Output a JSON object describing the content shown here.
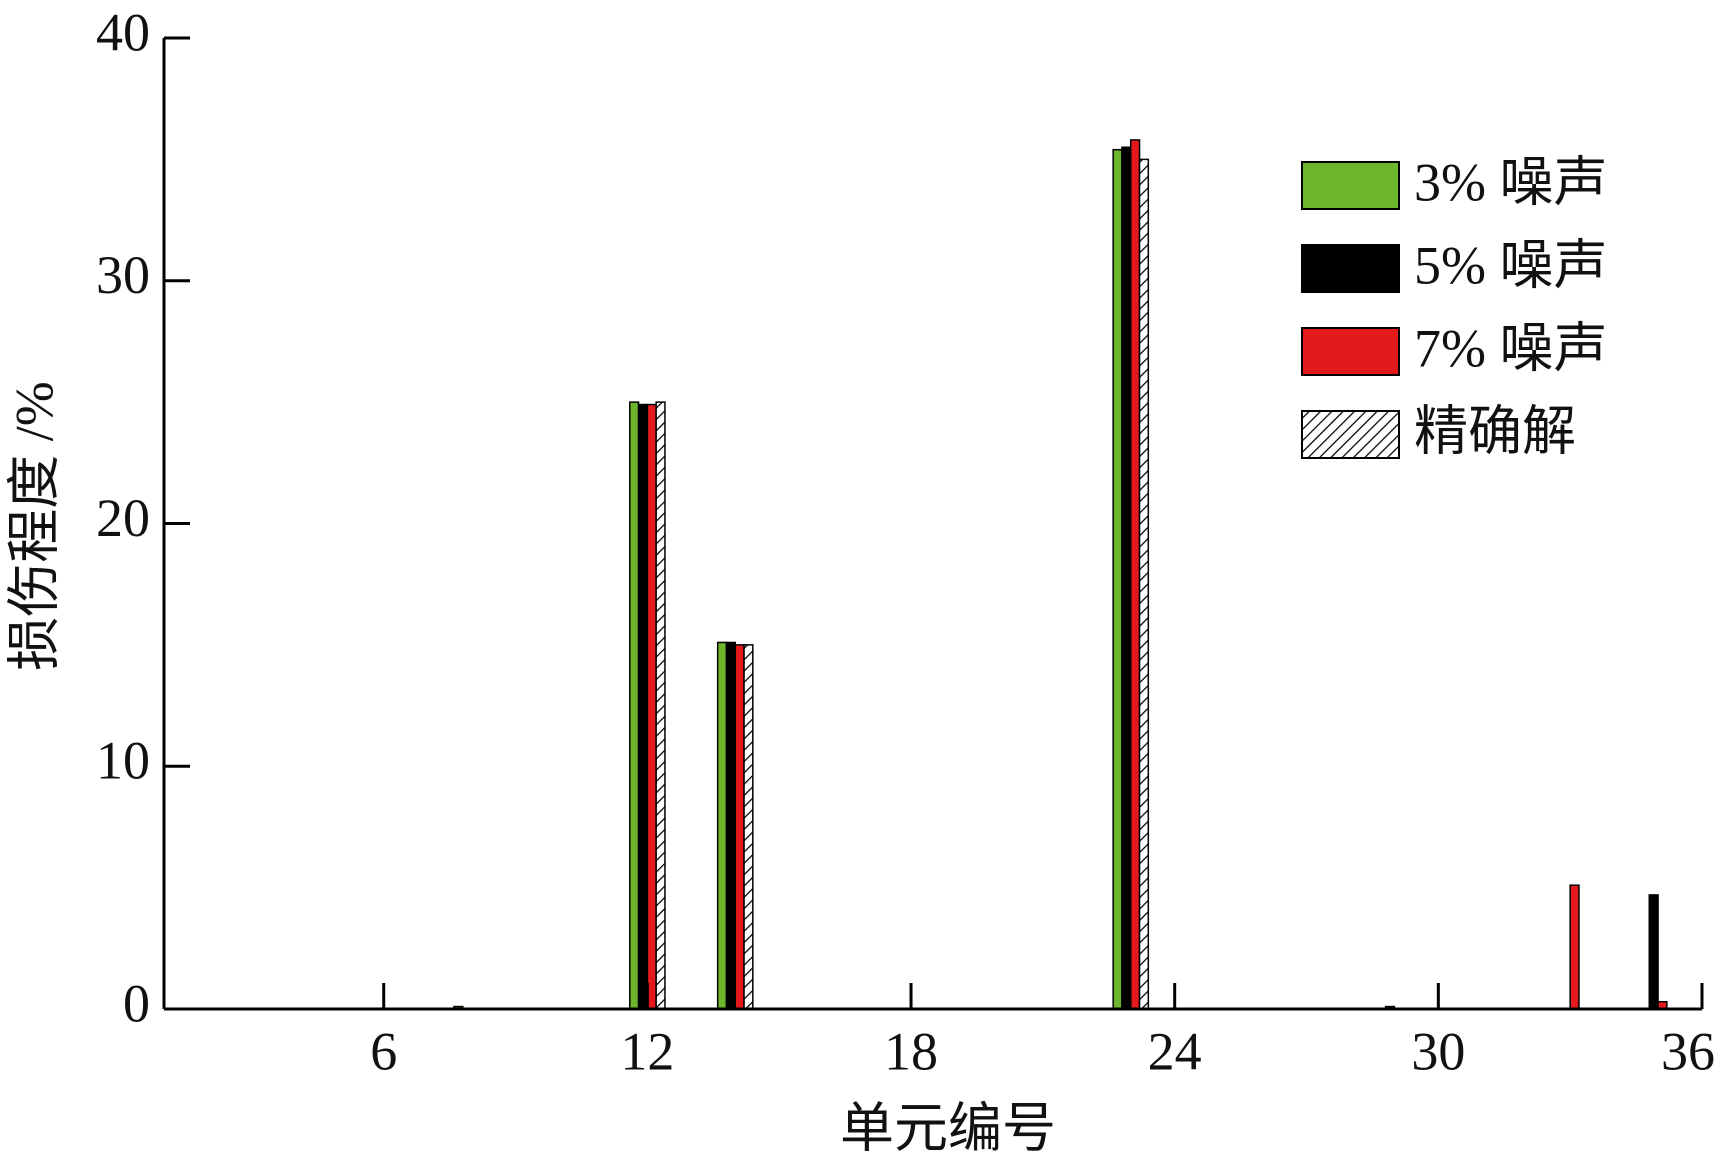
{
  "chart_data": {
    "type": "bar",
    "xlabel": "单元编号",
    "ylabel": "损伤程度 /%",
    "x": [
      8,
      12,
      14,
      23,
      29,
      33,
      35
    ],
    "series": [
      {
        "name": "3% 噪声",
        "color": "#6db52b",
        "values": [
          0.1,
          25.0,
          15.1,
          35.4,
          0,
          0,
          0
        ]
      },
      {
        "name": "5% 噪声",
        "color": "#000000",
        "values": [
          0,
          24.9,
          15.1,
          35.5,
          0.1,
          0,
          4.7
        ]
      },
      {
        "name": "7% 噪声",
        "color": "#e3191c",
        "values": [
          0,
          24.9,
          15.0,
          35.8,
          0,
          5.1,
          0.3
        ]
      },
      {
        "name": "精确解",
        "color": "#ffffff",
        "pattern": "hatch",
        "values": [
          0,
          25.0,
          15.0,
          35.0,
          0,
          0,
          0
        ]
      }
    ],
    "xlim": [
      1,
      36
    ],
    "xticks": [
      6,
      12,
      18,
      24,
      30,
      36
    ],
    "ylim": [
      0,
      40
    ],
    "yticks": [
      0,
      10,
      20,
      30,
      40
    ],
    "legend": "upper right"
  }
}
